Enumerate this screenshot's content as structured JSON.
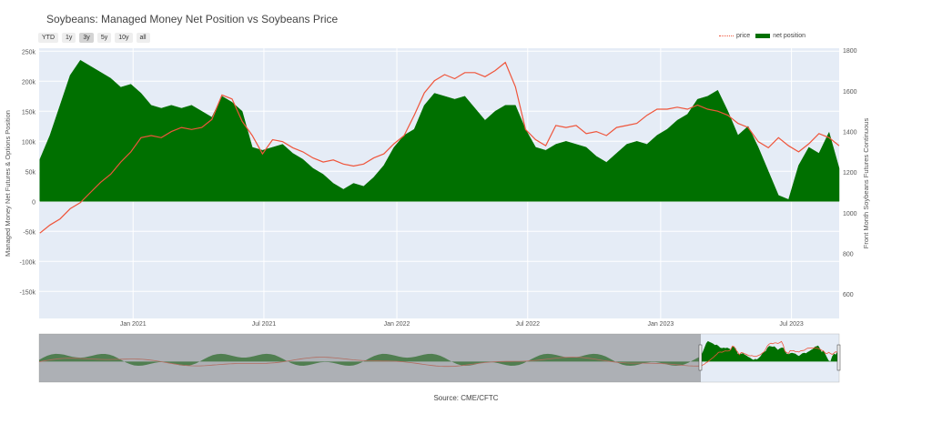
{
  "title": "Soybeans: Managed Money Net Position vs Soybeans Price",
  "range_buttons": [
    {
      "label": "YTD",
      "active": false
    },
    {
      "label": "1y",
      "active": false
    },
    {
      "label": "3y",
      "active": true
    },
    {
      "label": "5y",
      "active": false
    },
    {
      "label": "10y",
      "active": false
    },
    {
      "label": "all",
      "active": false
    }
  ],
  "legend": {
    "price": "price",
    "net": "net position"
  },
  "source": "Source: CME/CFTC",
  "colors": {
    "price": "#ef553b",
    "net": "#007000",
    "plot_bg": "#e5ecf6",
    "range_mask": "#7f7f7f"
  },
  "chart_data": {
    "type": "area",
    "title": "Soybeans: Managed Money Net Position vs Soybeans Price",
    "ylabel": "Managed Money Net Futures & Options Position",
    "y2label": "Front Month Soybeans Futures Continuous",
    "ylim": [
      -195000,
      255000
    ],
    "y2lim": [
      480,
      1810
    ],
    "xlim": [
      "2020-08-24",
      "2023-09-05"
    ],
    "y_ticks": [
      250000,
      200000,
      150000,
      100000,
      50000,
      0,
      -50000,
      -100000,
      -150000
    ],
    "y_tick_labels": [
      "250k",
      "200k",
      "150k",
      "100k",
      "50k",
      "0",
      "-50k",
      "-100k",
      "-150k"
    ],
    "y2_ticks": [
      1800,
      1600,
      1400,
      1200,
      1000,
      800,
      600
    ],
    "y2_tick_labels": [
      "1800",
      "1600",
      "1400",
      "1200",
      "1000",
      "800",
      "600"
    ],
    "x_ticks": [
      "2021-01-01",
      "2021-07-01",
      "2022-01-01",
      "2022-07-01",
      "2023-01-01",
      "2023-07-01"
    ],
    "x_tick_labels": [
      "Jan 2021",
      "Jul 2021",
      "Jan 2022",
      "Jul 2022",
      "Jan 2023",
      "Jul 2023"
    ],
    "grid": true,
    "legend_position": "top-right",
    "series": [
      {
        "name": "price",
        "type": "line",
        "axis": "y2",
        "x": [
          "2020-08-25",
          "2020-09-08",
          "2020-09-22",
          "2020-10-06",
          "2020-10-20",
          "2020-11-03",
          "2020-11-17",
          "2020-12-01",
          "2020-12-15",
          "2020-12-29",
          "2021-01-12",
          "2021-01-26",
          "2021-02-09",
          "2021-02-23",
          "2021-03-09",
          "2021-03-23",
          "2021-04-06",
          "2021-04-20",
          "2021-05-04",
          "2021-05-18",
          "2021-06-01",
          "2021-06-15",
          "2021-06-29",
          "2021-07-13",
          "2021-07-27",
          "2021-08-10",
          "2021-08-24",
          "2021-09-07",
          "2021-09-21",
          "2021-10-05",
          "2021-10-19",
          "2021-11-02",
          "2021-11-16",
          "2021-11-30",
          "2021-12-14",
          "2021-12-28",
          "2022-01-11",
          "2022-01-25",
          "2022-02-08",
          "2022-02-22",
          "2022-03-08",
          "2022-03-22",
          "2022-04-05",
          "2022-04-19",
          "2022-05-03",
          "2022-05-17",
          "2022-05-31",
          "2022-06-14",
          "2022-06-28",
          "2022-07-12",
          "2022-07-26",
          "2022-08-09",
          "2022-08-23",
          "2022-09-06",
          "2022-09-20",
          "2022-10-04",
          "2022-10-18",
          "2022-11-01",
          "2022-11-15",
          "2022-11-29",
          "2022-12-13",
          "2022-12-27",
          "2023-01-10",
          "2023-01-24",
          "2023-02-07",
          "2023-02-21",
          "2023-03-07",
          "2023-03-21",
          "2023-04-04",
          "2023-04-18",
          "2023-05-02",
          "2023-05-16",
          "2023-05-30",
          "2023-06-13",
          "2023-06-27",
          "2023-07-11",
          "2023-07-25",
          "2023-08-08",
          "2023-08-22",
          "2023-09-05"
        ],
        "y": [
          900,
          940,
          970,
          1020,
          1050,
          1100,
          1150,
          1190,
          1250,
          1300,
          1370,
          1380,
          1370,
          1400,
          1420,
          1410,
          1420,
          1460,
          1580,
          1560,
          1450,
          1380,
          1290,
          1360,
          1350,
          1320,
          1300,
          1270,
          1250,
          1260,
          1240,
          1230,
          1240,
          1270,
          1290,
          1340,
          1380,
          1480,
          1590,
          1650,
          1680,
          1660,
          1690,
          1690,
          1670,
          1700,
          1740,
          1620,
          1410,
          1360,
          1330,
          1430,
          1420,
          1430,
          1390,
          1400,
          1380,
          1420,
          1430,
          1440,
          1480,
          1510,
          1510,
          1520,
          1510,
          1530,
          1510,
          1500,
          1480,
          1440,
          1420,
          1350,
          1320,
          1370,
          1330,
          1300,
          1340,
          1390,
          1370,
          1330
        ]
      },
      {
        "name": "net position",
        "type": "area",
        "axis": "y",
        "x": [
          "2020-08-25",
          "2020-09-08",
          "2020-09-22",
          "2020-10-06",
          "2020-10-20",
          "2020-11-03",
          "2020-11-17",
          "2020-12-01",
          "2020-12-15",
          "2020-12-29",
          "2021-01-12",
          "2021-01-26",
          "2021-02-09",
          "2021-02-23",
          "2021-03-09",
          "2021-03-23",
          "2021-04-06",
          "2021-04-20",
          "2021-05-04",
          "2021-05-18",
          "2021-06-01",
          "2021-06-15",
          "2021-06-29",
          "2021-07-13",
          "2021-07-27",
          "2021-08-10",
          "2021-08-24",
          "2021-09-07",
          "2021-09-21",
          "2021-10-05",
          "2021-10-19",
          "2021-11-02",
          "2021-11-16",
          "2021-11-30",
          "2021-12-14",
          "2021-12-28",
          "2022-01-11",
          "2022-01-25",
          "2022-02-08",
          "2022-02-22",
          "2022-03-08",
          "2022-03-22",
          "2022-04-05",
          "2022-04-19",
          "2022-05-03",
          "2022-05-17",
          "2022-05-31",
          "2022-06-14",
          "2022-06-28",
          "2022-07-12",
          "2022-07-26",
          "2022-08-09",
          "2022-08-23",
          "2022-09-06",
          "2022-09-20",
          "2022-10-04",
          "2022-10-18",
          "2022-11-01",
          "2022-11-15",
          "2022-11-29",
          "2022-12-13",
          "2022-12-27",
          "2023-01-10",
          "2023-01-24",
          "2023-02-07",
          "2023-02-21",
          "2023-03-07",
          "2023-03-21",
          "2023-04-04",
          "2023-04-18",
          "2023-05-02",
          "2023-05-16",
          "2023-05-30",
          "2023-06-13",
          "2023-06-27",
          "2023-07-11",
          "2023-07-25",
          "2023-08-08",
          "2023-08-22",
          "2023-09-05"
        ],
        "y": [
          70000,
          110000,
          160000,
          210000,
          235000,
          225000,
          215000,
          205000,
          190000,
          195000,
          180000,
          160000,
          155000,
          160000,
          155000,
          160000,
          150000,
          140000,
          175000,
          165000,
          150000,
          90000,
          85000,
          90000,
          95000,
          80000,
          70000,
          55000,
          45000,
          30000,
          20000,
          30000,
          25000,
          40000,
          60000,
          90000,
          110000,
          120000,
          160000,
          180000,
          175000,
          170000,
          175000,
          155000,
          135000,
          150000,
          160000,
          160000,
          120000,
          90000,
          85000,
          95000,
          100000,
          95000,
          90000,
          75000,
          65000,
          80000,
          95000,
          100000,
          95000,
          110000,
          120000,
          135000,
          145000,
          170000,
          175000,
          185000,
          150000,
          110000,
          125000,
          90000,
          50000,
          10000,
          3000,
          60000,
          90000,
          80000,
          115000,
          55000
        ]
      }
    ]
  }
}
